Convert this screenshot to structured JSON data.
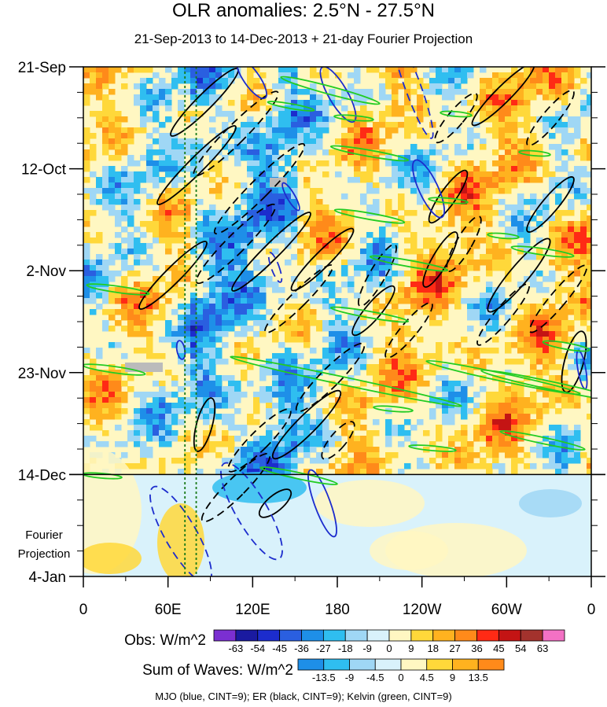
{
  "chart_data": {
    "type": "heatmap",
    "title": "OLR anomalies: 2.5°N - 27.5°N",
    "subtitle": "21-Sep-2013 to 14-Dec-2013 + 21-day Fourier Projection",
    "x_ticks": [
      "0",
      "60E",
      "120E",
      "180",
      "120W",
      "60W",
      "0"
    ],
    "x_tick_values": [
      0,
      60,
      120,
      180,
      240,
      300,
      360
    ],
    "x_range": [
      0,
      360
    ],
    "y_ticks": [
      "21-Sep",
      "12-Oct",
      "2-Nov",
      "23-Nov",
      "14-Dec",
      "4-Jan"
    ],
    "y_tick_days": [
      0,
      21,
      42,
      63,
      84,
      105
    ],
    "y_range_days": [
      0,
      105
    ],
    "observed_end_day": 84,
    "projection_label": [
      "Fourier",
      "Projection"
    ],
    "reference_longitudes": [
      72,
      80
    ],
    "obs_colorbar": {
      "label": "Obs: W/m^2",
      "levels": [
        "-63",
        "-54",
        "-45",
        "-36",
        "-27",
        "-18",
        "-9",
        "0",
        "9",
        "18",
        "27",
        "36",
        "45",
        "54",
        "63"
      ],
      "colors": [
        "#7b2fd1",
        "#1a1aa0",
        "#1c2ccd",
        "#2a5fe0",
        "#1e8fe8",
        "#2fbef0",
        "#9fd7f5",
        "#d9f2fb",
        "#fff7c2",
        "#ffd83a",
        "#ffb21f",
        "#ff8a1a",
        "#ff2a15",
        "#c41414",
        "#a3322d",
        "#f371c4"
      ]
    },
    "waves_colorbar": {
      "label": "Sum of Waves: W/m^2",
      "levels": [
        "-13.5",
        "-9",
        "-4.5",
        "0",
        "4.5",
        "9",
        "13.5"
      ],
      "colors": [
        "#1e8fe8",
        "#2fbef0",
        "#9fd7f5",
        "#d9f2fb",
        "#fff7c2",
        "#ffd83a",
        "#ffb21f",
        "#ff8a1a"
      ]
    },
    "wave_legend": "MJO (blue, CINT=9); ER (black, CINT=9); Kelvin (green, CINT=9)",
    "wave_colors": {
      "mjo": "#1c2ccd",
      "er": "#000000",
      "kelvin": "#22cc22"
    }
  }
}
